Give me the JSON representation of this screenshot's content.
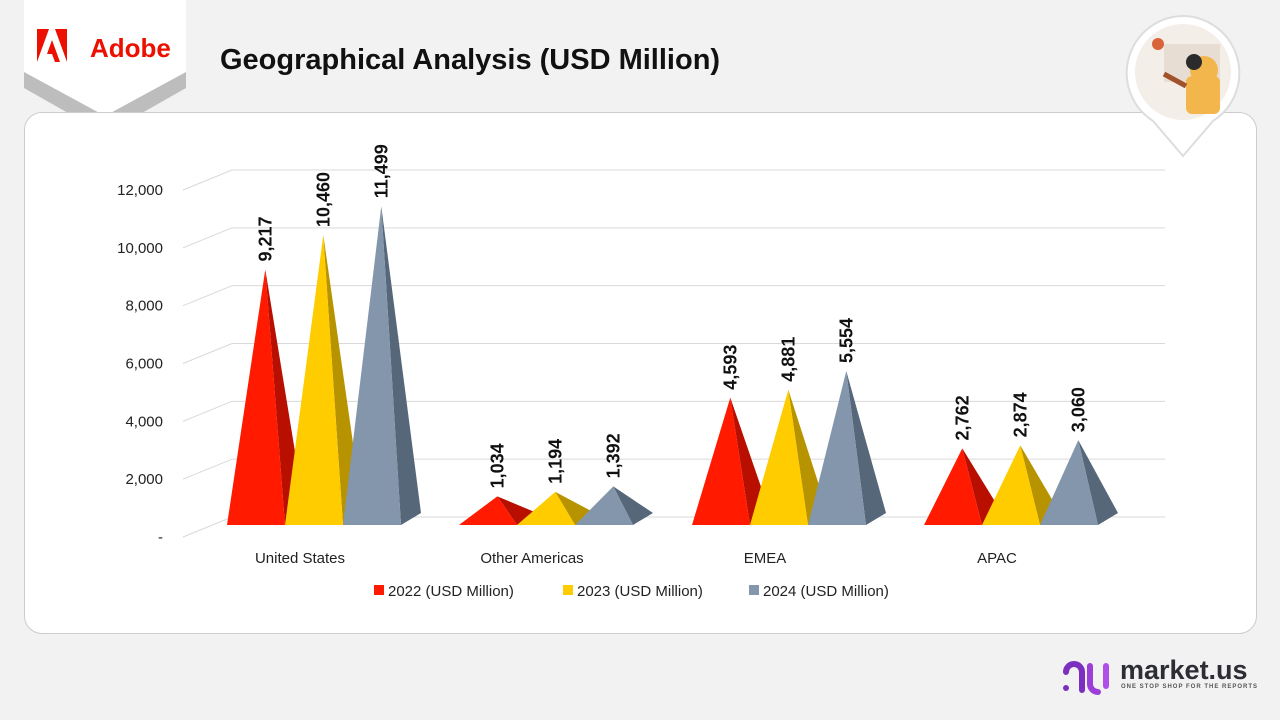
{
  "brand": {
    "name": "Adobe",
    "color": "#eb1000"
  },
  "title": "Geographical Analysis (USD Million)",
  "publisher": {
    "name": "market.us",
    "tagline": "ONE STOP SHOP FOR THE REPORTS"
  },
  "chart_data": {
    "type": "bar",
    "style": "3d-pyramid",
    "title": "Geographical Analysis (USD Million)",
    "categories": [
      "United States",
      "Other Americas",
      "EMEA",
      "APAC"
    ],
    "series": [
      {
        "name": "2022 (USD Million)",
        "color": "#ff1a00",
        "dark": "#b80f00",
        "values": [
          9217,
          1034,
          4593,
          2762
        ],
        "labels": [
          "9,217",
          "1,034",
          "4,593",
          "2,762"
        ]
      },
      {
        "name": "2023 (USD Million)",
        "color": "#ffcc00",
        "dark": "#b89300",
        "values": [
          10460,
          1194,
          4881,
          2874
        ],
        "labels": [
          "10,460",
          "1,194",
          "4,881",
          "2,874"
        ]
      },
      {
        "name": "2024 (USD Million)",
        "color": "#8496ab",
        "dark": "#56677a",
        "values": [
          11499,
          1392,
          5554,
          3060
        ],
        "labels": [
          "11,499",
          "1,392",
          "5,554",
          "3,060"
        ]
      }
    ],
    "yticks": [
      "-",
      "2,000",
      "4,000",
      "6,000",
      "8,000",
      "10,000",
      "12,000"
    ],
    "ylim": [
      0,
      12000
    ],
    "grid": true,
    "legend": "bottom"
  }
}
